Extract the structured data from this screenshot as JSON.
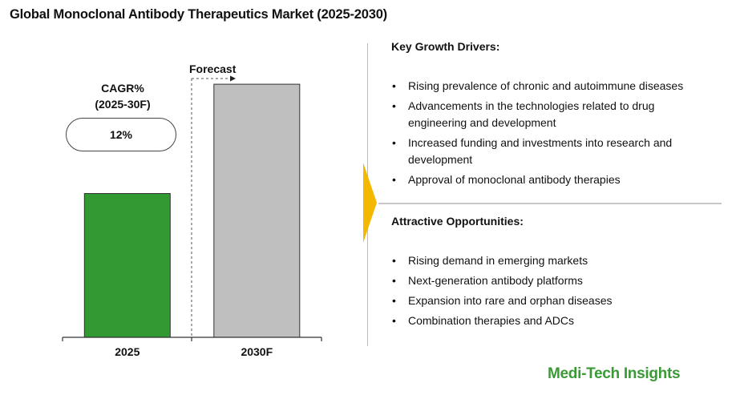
{
  "title": "Global Monoclonal Antibody Therapeutics Market (2025-2030)",
  "cagr": {
    "label": "CAGR%",
    "period": "(2025-30F)",
    "value": "12%"
  },
  "forecast_label": "Forecast",
  "chart_data": {
    "type": "bar",
    "categories": [
      "2025",
      "2030F"
    ],
    "values": [
      100,
      176
    ],
    "colors": [
      "#339933",
      "#bfbfbf"
    ],
    "forecast_start_category": "2030F",
    "title": "",
    "xlabel": "",
    "ylabel": "",
    "ylim": [
      0,
      190
    ],
    "grid": false
  },
  "drivers": {
    "heading": "Key Growth Drivers:",
    "items": [
      "Rising prevalence of chronic and autoimmune diseases",
      "Advancements in the technologies related to drug engineering and development",
      "Increased funding and investments into research and development",
      "Approval of monoclonal antibody therapies"
    ]
  },
  "opportunities": {
    "heading": "Attractive Opportunities:",
    "items": [
      "Rising demand in emerging markets",
      "Next-generation antibody platforms",
      "Expansion into rare and orphan diseases",
      "Combination therapies and ADCs"
    ]
  },
  "brand": "Medi-Tech Insights",
  "colors": {
    "accent_arrow": "#f4b800",
    "brand": "#3a9a36"
  }
}
